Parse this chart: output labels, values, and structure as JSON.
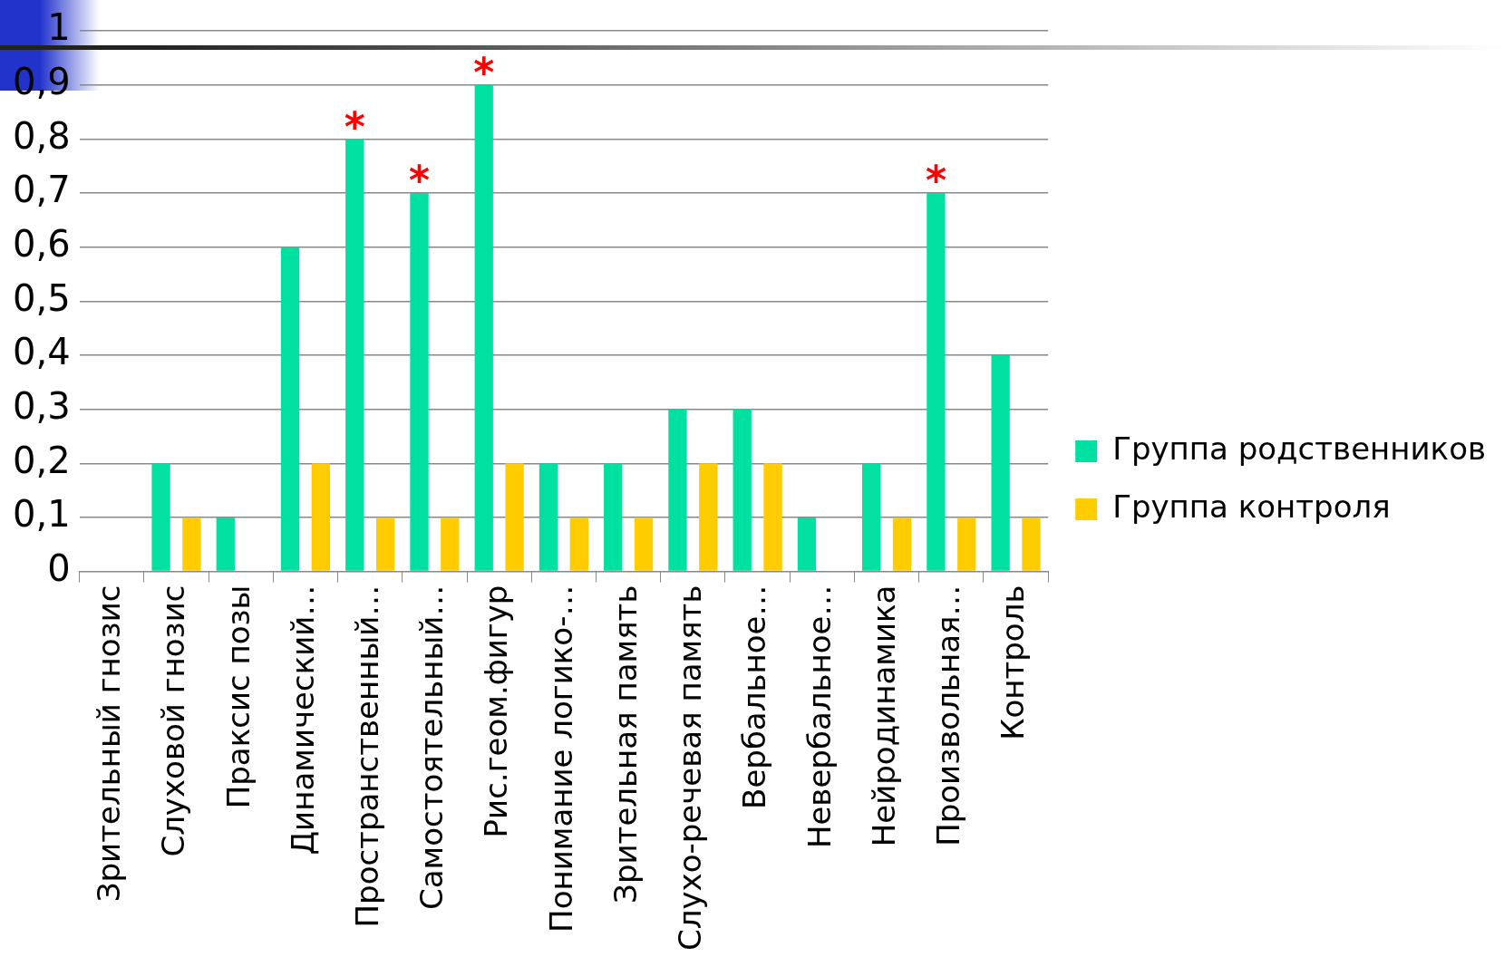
{
  "chart_data": {
    "type": "bar",
    "categories": [
      "Зрительный гнозис",
      "Слуховой гнозис",
      "Праксис позы",
      "Динамический…",
      "Пространственный…",
      "Самостоятельный…",
      "Рис.геом.фигур",
      "Понимание логико-…",
      "Зрительная память",
      "Слухо-речевая память",
      "Вербальное…",
      "Невербальное…",
      "Нейродинамика",
      "Произвольная…",
      "Контроль"
    ],
    "series": [
      {
        "name": "Группа родственников",
        "color": "#00e0a0",
        "values": [
          0,
          0.2,
          0.1,
          0.6,
          0.8,
          0.7,
          0.9,
          0.2,
          0.2,
          0.3,
          0.3,
          0.1,
          0.2,
          0.7,
          0.4
        ]
      },
      {
        "name": "Группа контроля",
        "color": "#ffcc00",
        "values": [
          0,
          0.1,
          0,
          0.2,
          0.1,
          0.1,
          0.2,
          0.1,
          0.1,
          0.2,
          0.2,
          0,
          0.1,
          0.1,
          0.1
        ]
      }
    ],
    "ylim": [
      0,
      1
    ],
    "yticks": [
      0,
      {
        "value": 0.1,
        "label": "0,1"
      },
      {
        "value": 0.2,
        "label": "0,2"
      },
      {
        "value": 0.3,
        "label": "0,3"
      },
      {
        "value": 0.4,
        "label": "0,4"
      },
      {
        "value": 0.5,
        "label": "0,5"
      },
      {
        "value": 0.6,
        "label": "0,6"
      },
      {
        "value": 0.7,
        "label": "0,7"
      },
      {
        "value": 0.8,
        "label": "0,8"
      },
      {
        "value": 0.9,
        "label": "0,9"
      },
      1
    ],
    "grid": "y",
    "legend": "right",
    "annotations": [
      {
        "text": "*",
        "x": "Пространственный…",
        "y": 0.8
      },
      {
        "text": "*",
        "x": "Самостоятельный…",
        "y": 0.7
      },
      {
        "text": "*",
        "x": "Рис.геом.фигур",
        "y": 0.9
      },
      {
        "text": "*",
        "x": "Произвольная…",
        "y": 0.7
      }
    ]
  }
}
